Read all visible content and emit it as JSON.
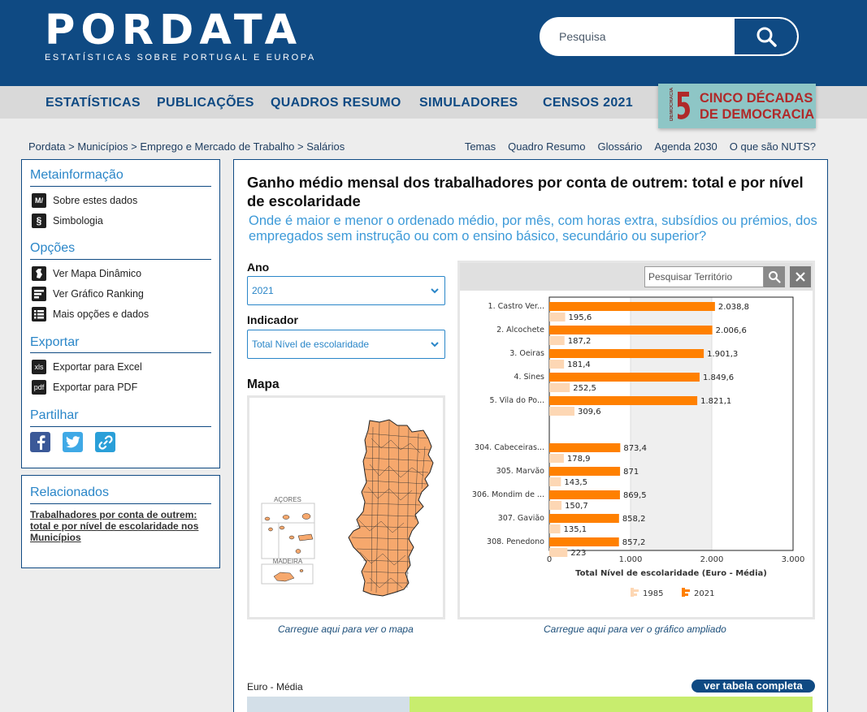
{
  "header": {
    "logo": "PORDATA",
    "tagline": "ESTATÍSTICAS SOBRE PORTUGAL E EUROPA",
    "search_placeholder": "Pesquisa"
  },
  "nav": {
    "items": [
      "ESTATÍSTICAS",
      "PUBLICAÇÕES",
      "QUADROS RESUMO",
      "SIMULADORES",
      "CENSOS 2021"
    ],
    "banner_line1": "CINCO DÉCADAS",
    "banner_line2": "DE DEMOCRACIA",
    "banner_vertical": "DEMOCRACIA"
  },
  "breadcrumb": [
    "Pordata",
    "Municípios",
    "Emprego e Mercado de Trabalho",
    "Salários"
  ],
  "toplinks": [
    "Temas",
    "Quadro Resumo",
    "Glossário",
    "Agenda 2030",
    "O que são NUTS?"
  ],
  "sidebar": {
    "meta_title": "Metainformação",
    "meta_items": [
      {
        "icon": "M/",
        "label": "Sobre estes dados"
      },
      {
        "icon": "§",
        "label": "Simbologia"
      }
    ],
    "options_title": "Opções",
    "options_items": [
      {
        "label": "Ver Mapa Dinâmico"
      },
      {
        "label": "Ver Gráfico Ranking"
      },
      {
        "label": "Mais opções e dados"
      }
    ],
    "export_title": "Exportar",
    "export_items": [
      {
        "icon": "xls",
        "label": "Exportar para Excel"
      },
      {
        "icon": "pdf",
        "label": "Exportar para PDF"
      }
    ],
    "share_title": "Partilhar",
    "related_title": "Relacionados",
    "related_link": "Trabalhadores por conta de outrem: total e por nível de escolaridade nos Municípios"
  },
  "main": {
    "title": "Ganho médio mensal dos trabalhadores por conta de outrem: total e por nível de escolaridade",
    "subtitle": "Onde é maior e menor o ordenado médio, por mês, com horas extra, subsídios ou prémios, dos empregados sem instrução ou com o ensino básico, secundário ou superior?",
    "year_label": "Ano",
    "year_value": "2021",
    "indicator_label": "Indicador",
    "indicator_value": "Total Nível de escolaridade",
    "map_label": "Mapa",
    "map_caption": "Carregue aqui para ver o mapa",
    "map_label_acores": "AÇORES",
    "map_label_madeira": "MADEIRA",
    "territory_placeholder": "Pesquisar Território",
    "chart_caption": "Carregue aqui para ver o gráfico ampliado",
    "euro_label": "Euro - Média",
    "full_table_button": "ver tabela completa"
  },
  "chart_data": {
    "type": "bar",
    "orientation": "horizontal",
    "categories": [
      "1. Castro Ver...",
      "2. Alcochete",
      "3. Oeiras",
      "4. Sines",
      "5. Vila do Po...",
      "304. Cabeceiras...",
      "305. Marvão",
      "306. Mondim de ...",
      "307. Gavião",
      "308. Penedono"
    ],
    "series": [
      {
        "name": "2021",
        "color": "#ff8000",
        "values": [
          2038.8,
          2006.6,
          1901.3,
          1849.6,
          1821.1,
          873.4,
          871,
          869.5,
          858.2,
          857.2
        ]
      },
      {
        "name": "1985",
        "color": "#fdd7b4",
        "values": [
          195.6,
          187.2,
          181.4,
          252.5,
          309.6,
          178.9,
          143.5,
          150.7,
          135.1,
          223
        ]
      }
    ],
    "value_labels_2021": [
      "2.038,8",
      "2.006,6",
      "1.901,3",
      "1.849,6",
      "1.821,1",
      "873,4",
      "871",
      "869,5",
      "858,2",
      "857,2"
    ],
    "value_labels_1985": [
      "195,6",
      "187,2",
      "181,4",
      "252,5",
      "309,6",
      "178,9",
      "143,5",
      "150,7",
      "135,1",
      "223"
    ],
    "xlim": [
      0,
      3000
    ],
    "xticks": [
      0,
      1000,
      2000,
      3000
    ],
    "xtick_labels": [
      "0",
      "1.000",
      "2.000",
      "3.000"
    ],
    "xlabel": "Total Nível de escolaridade (Euro - Média)",
    "legend": [
      "1985",
      "2021"
    ],
    "legend_position": "bottom"
  }
}
